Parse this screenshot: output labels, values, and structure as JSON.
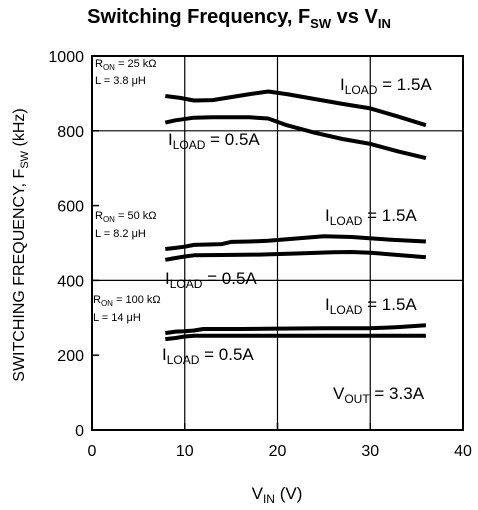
{
  "chart_data": {
    "type": "line",
    "title": {
      "main": "Switching Frequency, F",
      "sub1": "SW",
      "mid": " vs V",
      "sub2": "IN"
    },
    "xlabel": {
      "main": "V",
      "sub": "IN",
      "rest": " (V)"
    },
    "ylabel": {
      "main": "SWITCHING FREQUENCY, F",
      "sub": "SW",
      "rest": " (kHz)"
    },
    "xlim": [
      0,
      40
    ],
    "ylim": [
      0,
      1000
    ],
    "xticks": [
      "0",
      "10",
      "20",
      "30",
      "40"
    ],
    "yticks": [
      "0",
      "200",
      "400",
      "600",
      "800",
      "1000"
    ],
    "grid": "horizontal lines at 400 and 800, vertical lines at 10, 20, 30",
    "series": [
      {
        "name": "I_LOAD = 1.5A (R_ON = 25 kΩ)",
        "x": [
          7.9,
          9.5,
          11.0,
          13.0,
          15.0,
          17.0,
          19.0,
          21.0,
          24.0,
          27.0,
          30.0,
          33.0,
          36.0
        ],
        "y": [
          893,
          888,
          881,
          882,
          890,
          898,
          905,
          898,
          885,
          872,
          860,
          838,
          815
        ]
      },
      {
        "name": "I_LOAD = 0.5A (R_ON = 25 kΩ)",
        "x": [
          7.9,
          9.0,
          11.0,
          13.0,
          15.0,
          17.0,
          19.0,
          21.0,
          24.0,
          27.0,
          30.0,
          33.0,
          36.0
        ],
        "y": [
          822,
          828,
          835,
          836,
          836,
          836,
          833,
          815,
          795,
          778,
          765,
          745,
          727
        ]
      },
      {
        "name": "I_LOAD = 1.5A (R_ON = 50 kΩ)",
        "x": [
          7.9,
          9.0,
          10.0,
          11.0,
          14.0,
          15.0,
          17.0,
          19.0,
          22.0,
          25.0,
          28.0,
          32.0,
          36.0
        ],
        "y": [
          484,
          487,
          490,
          495,
          497,
          503,
          504,
          506,
          512,
          518,
          516,
          509,
          504
        ]
      },
      {
        "name": "I_LOAD = 0.5A (R_ON = 50 kΩ)",
        "x": [
          7.9,
          9.0,
          10.0,
          11.0,
          14.0,
          18.0,
          22.0,
          26.0,
          28.0,
          30.0,
          33.0,
          36.0
        ],
        "y": [
          455,
          460,
          464,
          467,
          468,
          469,
          472,
          475,
          476,
          474,
          468,
          462
        ]
      },
      {
        "name": "I_LOAD = 1.5A (R_ON = 100 kΩ)",
        "x": [
          7.9,
          9.0,
          10.0,
          11.0,
          12.0,
          16.0,
          20.0,
          25.0,
          30.0,
          33.0,
          36.0
        ],
        "y": [
          259,
          263,
          264,
          266,
          270,
          270,
          271,
          272,
          272,
          275,
          280
        ]
      },
      {
        "name": "I_LOAD = 0.5A (R_ON = 100 kΩ)",
        "x": [
          7.9,
          9.0,
          10.0,
          11.0,
          14.0,
          20.0,
          26.0,
          30.0,
          36.0
        ],
        "y": [
          243,
          246,
          250,
          252,
          252,
          252,
          252,
          252,
          252
        ]
      }
    ],
    "annotations": {
      "a1": {
        "i": "I",
        "sub": "LOAD",
        "rest": " = 1.5A"
      },
      "a2": {
        "i": "I",
        "sub": "LOAD",
        "rest": " = 0.5A"
      },
      "a3": {
        "i": "I",
        "sub": "LOAD",
        "rest": " = 1.5A"
      },
      "a4": {
        "i": "I",
        "sub": "LOAD",
        "rest": " = 0.5A"
      },
      "a5": {
        "i": "I",
        "sub": "LOAD",
        "rest": " = 1.5A"
      },
      "a6": {
        "i": "I",
        "sub": "LOAD",
        "rest": " = 0.5A"
      },
      "vout": {
        "v": "V",
        "sub": "OUT",
        "rest": " = 3.3A"
      },
      "ron1": {
        "r": "R",
        "sub": "ON",
        "rest": " = 25 kΩ",
        "l": "L = 3.8 μH"
      },
      "ron2": {
        "r": "R",
        "sub": "ON",
        "rest": " = 50 kΩ",
        "l": "L = 8.2 μH"
      },
      "ron3": {
        "r": "R",
        "sub": "ON",
        "rest": " = 100 kΩ",
        "l": "L = 14 μH"
      }
    }
  }
}
